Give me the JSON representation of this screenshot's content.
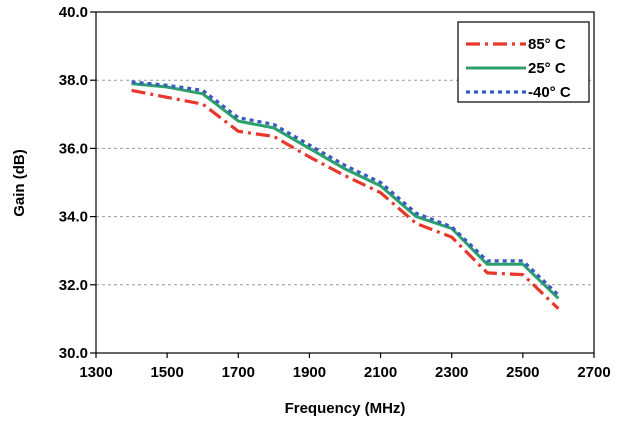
{
  "chart_data": {
    "type": "line",
    "title": "",
    "xlabel": "Frequency (MHz)",
    "ylabel": "Gain  (dB)",
    "xlim": [
      1300,
      2700
    ],
    "ylim": [
      30.0,
      40.0
    ],
    "x_ticks": [
      "1300",
      "1500",
      "1700",
      "1900",
      "2100",
      "2300",
      "2500",
      "2700"
    ],
    "x_tick_values": [
      1300,
      1500,
      1700,
      1900,
      2100,
      2300,
      2500,
      2700
    ],
    "y_ticks": [
      "30.0",
      "32.0",
      "34.0",
      "36.0",
      "38.0",
      "40.0"
    ],
    "y_tick_values": [
      30,
      32,
      34,
      36,
      38,
      40
    ],
    "grid": {
      "horizontal": true,
      "vertical": false,
      "style": "dashed"
    },
    "legend": {
      "placement": "top-right"
    },
    "x": [
      1400,
      1500,
      1600,
      1700,
      1800,
      1900,
      2000,
      2100,
      2200,
      2300,
      2400,
      2500,
      2600
    ],
    "series": [
      {
        "name": "85° C",
        "color": "#e8372b",
        "style": "dash-dot",
        "values": [
          37.7,
          37.5,
          37.3,
          36.5,
          36.35,
          35.75,
          35.2,
          34.7,
          33.8,
          33.4,
          32.35,
          32.3,
          31.3
        ]
      },
      {
        "name": "25° C",
        "color": "#2ca06c",
        "style": "solid",
        "values": [
          37.9,
          37.8,
          37.6,
          36.8,
          36.6,
          36.0,
          35.4,
          34.9,
          34.0,
          33.65,
          32.6,
          32.6,
          31.6
        ]
      },
      {
        "name": "-40° C",
        "color": "#3a5cc2",
        "style": "dotted",
        "values": [
          37.95,
          37.85,
          37.7,
          36.9,
          36.7,
          36.1,
          35.5,
          35.0,
          34.1,
          33.7,
          32.7,
          32.7,
          31.7
        ]
      }
    ]
  }
}
